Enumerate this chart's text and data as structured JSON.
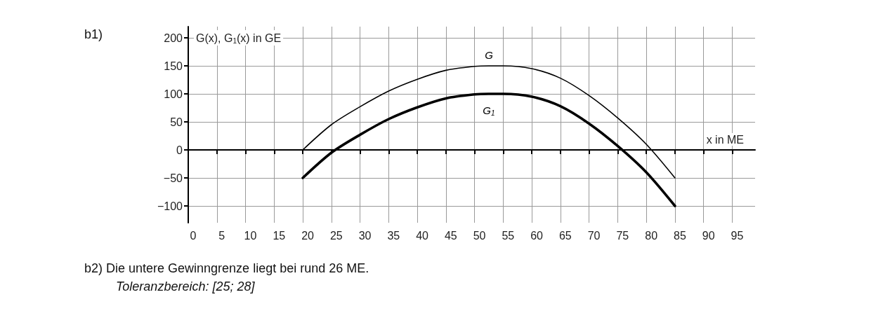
{
  "chart_data": {
    "type": "line",
    "xlabel": "x in ME",
    "ylabel": "G(x), G$_{1}$(x) in GE",
    "annotations": [
      "b1)",
      "b2) Die untere Gewinngrenze liegt bei rund 26 ME.",
      "Toleranzbereich: [25; 28]"
    ],
    "x": [
      20,
      25,
      30,
      35,
      40,
      45,
      50,
      52.5,
      55,
      60,
      65,
      70,
      75,
      80,
      85
    ],
    "series": [
      {
        "name": "G",
        "color": "#000000",
        "values": [
          0,
          45,
          77,
          105,
          126,
          142,
          149,
          150,
          150,
          145,
          128,
          97,
          57,
          10,
          -50
        ]
      },
      {
        "name": "G$_{1}$",
        "color": "#000000",
        "values": [
          -50,
          -5,
          27,
          55,
          76,
          92,
          99,
          100,
          100,
          95,
          78,
          47,
          7,
          -40,
          -100
        ]
      }
    ],
    "xlim": [
      0,
      99
    ],
    "ylim": [
      -130,
      220
    ],
    "xticks": [
      0,
      5,
      10,
      15,
      20,
      25,
      30,
      35,
      40,
      45,
      50,
      55,
      60,
      65,
      70,
      75,
      80,
      85,
      90,
      95
    ],
    "yticks": [
      {
        "value": -100,
        "label": "−100"
      },
      {
        "value": -50,
        "label": "−50"
      },
      0,
      50,
      100,
      150,
      200
    ],
    "grid": true,
    "legend": false,
    "marker": "none",
    "line_style": "solid"
  }
}
